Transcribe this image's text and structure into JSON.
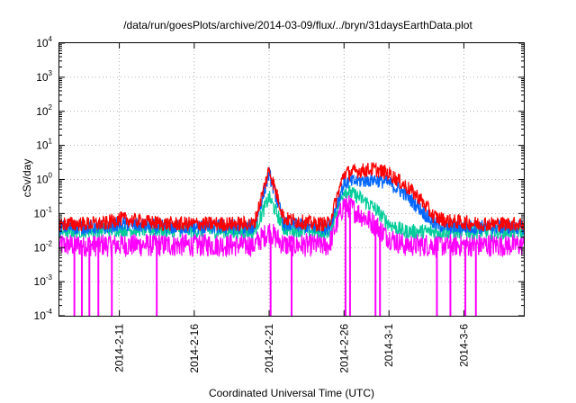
{
  "chart_data": {
    "type": "line",
    "title": "/data/run/goesPlots/archive/2014-03-09/flux/../bryn/31daysEarthData.plot",
    "xlabel": "Coordinated Universal Time (UTC)",
    "ylabel": "cSv/day",
    "yscale": "log",
    "ylim": [
      0.0001,
      10000
    ],
    "xlim": [
      "2014-02-07",
      "2014-03-10"
    ],
    "grid": true,
    "y_ticks": [
      {
        "value": 0.0001,
        "base": "10",
        "exp": "-4"
      },
      {
        "value": 0.001,
        "base": "10",
        "exp": "-3"
      },
      {
        "value": 0.01,
        "base": "10",
        "exp": "-2"
      },
      {
        "value": 0.1,
        "base": "10",
        "exp": "-1"
      },
      {
        "value": 1,
        "base": "10",
        "exp": "0"
      },
      {
        "value": 10,
        "base": "10",
        "exp": "1"
      },
      {
        "value": 100,
        "base": "10",
        "exp": "2"
      },
      {
        "value": 1000,
        "base": "10",
        "exp": "3"
      },
      {
        "value": 10000,
        "base": "10",
        "exp": "4"
      }
    ],
    "x_ticks": [
      {
        "value": "2014-02-11",
        "label": "2014-2-11"
      },
      {
        "value": "2014-02-16",
        "label": "2014-2-16"
      },
      {
        "value": "2014-02-21",
        "label": "2014-2-21"
      },
      {
        "value": "2014-02-26",
        "label": "2014-2-26"
      },
      {
        "value": "2014-03-01",
        "label": "2014-3-1"
      },
      {
        "value": "2014-03-06",
        "label": "2014-3-6"
      }
    ],
    "series": [
      {
        "color": "#ff0000",
        "x": [
          "2014-02-07",
          "2014-02-10",
          "2014-02-11",
          "2014-02-14",
          "2014-02-20",
          "2014-02-21",
          "2014-02-22",
          "2014-02-24",
          "2014-02-25",
          "2014-02-26",
          "2014-02-27",
          "2014-02-28",
          "2014-03-01",
          "2014-03-02",
          "2014-03-03",
          "2014-03-04",
          "2014-03-05",
          "2014-03-07",
          "2014-03-10"
        ],
        "y": [
          0.05,
          0.05,
          0.07,
          0.05,
          0.05,
          2.0,
          0.07,
          0.05,
          0.05,
          1.5,
          1.8,
          2.0,
          1.5,
          0.7,
          0.3,
          0.08,
          0.06,
          0.05,
          0.05
        ]
      },
      {
        "color": "#0066ff",
        "x": [
          "2014-02-07",
          "2014-02-10",
          "2014-02-11",
          "2014-02-14",
          "2014-02-20",
          "2014-02-21",
          "2014-02-22",
          "2014-02-24",
          "2014-02-25",
          "2014-02-26",
          "2014-02-27",
          "2014-02-28",
          "2014-03-01",
          "2014-03-02",
          "2014-03-03",
          "2014-03-04",
          "2014-03-05",
          "2014-03-07",
          "2014-03-10"
        ],
        "y": [
          0.04,
          0.04,
          0.05,
          0.04,
          0.04,
          1.5,
          0.05,
          0.04,
          0.04,
          0.8,
          0.9,
          1.0,
          0.8,
          0.4,
          0.15,
          0.05,
          0.04,
          0.04,
          0.04
        ]
      },
      {
        "color": "#00cc99",
        "x": [
          "2014-02-07",
          "2014-02-11",
          "2014-02-20",
          "2014-02-21",
          "2014-02-22",
          "2014-02-25",
          "2014-02-26",
          "2014-02-27",
          "2014-02-28",
          "2014-03-01",
          "2014-03-02",
          "2014-03-04",
          "2014-03-10"
        ],
        "y": [
          0.03,
          0.035,
          0.03,
          0.3,
          0.035,
          0.03,
          0.5,
          0.3,
          0.15,
          0.05,
          0.03,
          0.03,
          0.03
        ]
      },
      {
        "color": "#ff00ff",
        "x": [
          "2014-02-07",
          "2014-02-11",
          "2014-02-20",
          "2014-02-21",
          "2014-02-22",
          "2014-02-25",
          "2014-02-26",
          "2014-02-27",
          "2014-02-28",
          "2014-03-01",
          "2014-03-02",
          "2014-03-04",
          "2014-03-10"
        ],
        "y": [
          0.012,
          0.012,
          0.012,
          0.03,
          0.012,
          0.012,
          0.2,
          0.1,
          0.05,
          0.02,
          0.012,
          0.012,
          0.012
        ],
        "dropouts": [
          "2014-02-08",
          "2014-02-08.5",
          "2014-02-09",
          "2014-02-09.6",
          "2014-02-10.5",
          "2014-02-13.5",
          "2014-02-21.1",
          "2014-02-22.5",
          "2014-02-26.1",
          "2014-02-26.4",
          "2014-02-28.1",
          "2014-02-28.4",
          "2014-03-04.2",
          "2014-03-05.1",
          "2014-03-06.1",
          "2014-03-06.8"
        ]
      }
    ]
  }
}
